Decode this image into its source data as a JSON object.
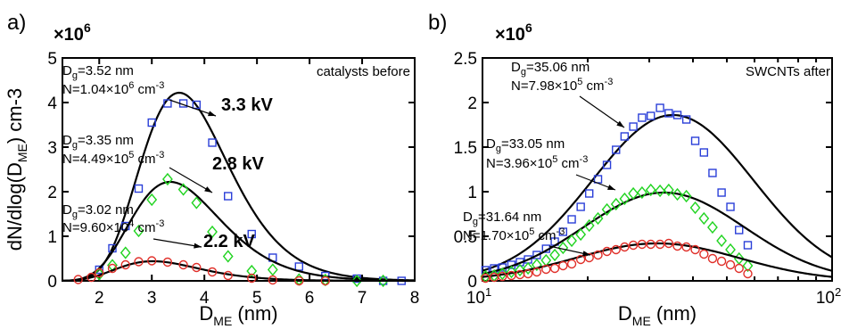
{
  "colors": {
    "fit": "#000000",
    "s33": "#2a3fd8",
    "s28": "#22d422",
    "s22": "#e0302a"
  },
  "chart_data": [
    {
      "type": "scatter",
      "panel_label": "a)",
      "multiplier": "×10",
      "multiplier_exp": "6",
      "xlabel": "D",
      "xlabel_sub": "ME",
      "xlabel_unit": " (nm)",
      "ylabel": "dN/dlog(D",
      "ylabel_sub": "ME",
      "ylabel_unit": ") cm-3",
      "x_scale": "linear",
      "xlim": [
        1.3,
        8
      ],
      "ylim": [
        0,
        5
      ],
      "x_ticks": [
        "2",
        "3",
        "4",
        "5",
        "6",
        "7",
        "8"
      ],
      "y_ticks": [
        "0",
        "1",
        "2",
        "3",
        "4",
        "5"
      ],
      "corner_label": "catalysts before",
      "series": [
        {
          "marker": "square",
          "color_key": "s33",
          "fit_label": "3.3 kV",
          "dg_prefix": "D",
          "dg_sub": "g",
          "dg_value": "=3.52 nm",
          "n_prefix": "N=1.04×10",
          "n_exp": "6",
          "n_unit": " cm",
          "n_unit_exp": "-3",
          "fit": {
            "peak": 4.22,
            "mu": 3.52,
            "sigma": 1.27
          },
          "points": [
            [
              2.0,
              0.25
            ],
            [
              2.25,
              0.73
            ],
            [
              2.5,
              1.23
            ],
            [
              2.75,
              2.07
            ],
            [
              3.0,
              3.55
            ],
            [
              3.3,
              3.98
            ],
            [
              3.6,
              3.98
            ],
            [
              3.85,
              3.95
            ],
            [
              4.15,
              3.1
            ],
            [
              4.45,
              1.9
            ],
            [
              4.9,
              1.05
            ],
            [
              5.3,
              0.52
            ],
            [
              5.8,
              0.32
            ],
            [
              6.3,
              0.11
            ],
            [
              6.9,
              0.05
            ],
            [
              7.4,
              0.0
            ],
            [
              7.75,
              0.0
            ]
          ]
        },
        {
          "marker": "diamond",
          "color_key": "s28",
          "fit_label": "2.8 kV",
          "dg_prefix": "D",
          "dg_sub": "g",
          "dg_value": "=3.35 nm",
          "n_prefix": "N=4.49×10",
          "n_exp": "5",
          "n_unit": " cm",
          "n_unit_exp": "-3",
          "fit": {
            "peak": 2.22,
            "mu": 3.35,
            "sigma": 1.29
          },
          "points": [
            [
              2.0,
              0.15
            ],
            [
              2.25,
              0.35
            ],
            [
              2.5,
              0.63
            ],
            [
              2.75,
              1.12
            ],
            [
              3.0,
              1.82
            ],
            [
              3.3,
              2.28
            ],
            [
              3.6,
              2.05
            ],
            [
              3.85,
              1.75
            ],
            [
              4.15,
              1.1
            ],
            [
              4.45,
              0.55
            ],
            [
              4.9,
              0.22
            ],
            [
              5.3,
              0.25
            ],
            [
              5.8,
              0.03
            ],
            [
              6.3,
              0.02
            ],
            [
              6.9,
              0.0
            ],
            [
              7.4,
              0.0
            ]
          ]
        },
        {
          "marker": "circle",
          "color_key": "s22",
          "fit_label": "2.2 kV",
          "dg_prefix": "D",
          "dg_sub": "g",
          "dg_value": "=3.02 nm",
          "n_prefix": "N=9.60×10",
          "n_exp": "4",
          "n_unit": " cm",
          "n_unit_exp": "-3",
          "fit": {
            "peak": 0.44,
            "mu": 3.02,
            "sigma": 1.3
          },
          "points": [
            [
              1.6,
              0.03
            ],
            [
              1.85,
              0.08
            ],
            [
              2.0,
              0.18
            ],
            [
              2.25,
              0.28
            ],
            [
              2.5,
              0.36
            ],
            [
              2.75,
              0.43
            ],
            [
              3.0,
              0.45
            ],
            [
              3.3,
              0.42
            ],
            [
              3.6,
              0.36
            ],
            [
              3.85,
              0.3
            ],
            [
              4.15,
              0.2
            ],
            [
              4.45,
              0.12
            ],
            [
              4.9,
              0.06
            ],
            [
              5.3,
              0.02
            ],
            [
              5.8,
              0.0
            ],
            [
              6.3,
              0.0
            ]
          ]
        }
      ]
    },
    {
      "type": "scatter",
      "panel_label": "b)",
      "multiplier": "×10",
      "multiplier_exp": "6",
      "xlabel": "D",
      "xlabel_sub": "ME",
      "xlabel_unit": " (nm)",
      "x_scale": "log",
      "xlim": [
        10,
        100
      ],
      "ylim": [
        0,
        2.5
      ],
      "x_ticks": [
        {
          "value": 10,
          "base": "10",
          "exp": "1"
        },
        {
          "value": 100,
          "base": "10",
          "exp": "2"
        }
      ],
      "y_ticks": [
        "0",
        "0.5",
        "1",
        "1.5",
        "2",
        "2.5"
      ],
      "corner_label": "SWCNTs after",
      "series": [
        {
          "marker": "square",
          "color_key": "s33",
          "dg_prefix": "D",
          "dg_sub": "g",
          "dg_value": "=35.06 nm",
          "n_prefix": "N=7.98×10",
          "n_exp": "5",
          "n_unit": " cm",
          "n_unit_exp": "-3",
          "fit": {
            "peak": 1.86,
            "mu": 35.06,
            "sigma": 1.7
          },
          "points": [
            [
              10.2,
              0.12
            ],
            [
              10.8,
              0.14
            ],
            [
              11.4,
              0.15
            ],
            [
              12.1,
              0.18
            ],
            [
              12.8,
              0.21
            ],
            [
              13.5,
              0.24
            ],
            [
              14.3,
              0.29
            ],
            [
              15.2,
              0.36
            ],
            [
              16.1,
              0.44
            ],
            [
              17.0,
              0.55
            ],
            [
              18.0,
              0.69
            ],
            [
              19.1,
              0.83
            ],
            [
              20.2,
              0.98
            ],
            [
              21.4,
              1.14
            ],
            [
              22.7,
              1.3
            ],
            [
              24.1,
              1.47
            ],
            [
              25.5,
              1.62
            ],
            [
              27.0,
              1.73
            ],
            [
              28.6,
              1.83
            ],
            [
              30.3,
              1.85
            ],
            [
              32.2,
              1.94
            ],
            [
              34.1,
              1.88
            ],
            [
              36.1,
              1.86
            ],
            [
              38.3,
              1.81
            ],
            [
              40.6,
              1.57
            ],
            [
              43.0,
              1.44
            ],
            [
              45.5,
              1.21
            ],
            [
              48.3,
              0.99
            ],
            [
              51.2,
              0.83
            ],
            [
              54.2,
              0.57
            ],
            [
              57.4,
              0.4
            ]
          ]
        },
        {
          "marker": "diamond",
          "color_key": "s28",
          "dg_prefix": "D",
          "dg_sub": "g",
          "dg_value": "=33.05 nm",
          "n_prefix": "N=3.96×10",
          "n_exp": "5",
          "n_unit": " cm",
          "n_unit_exp": "-3",
          "fit": {
            "peak": 0.99,
            "mu": 33.05,
            "sigma": 1.7
          },
          "points": [
            [
              10.2,
              0.05
            ],
            [
              10.8,
              0.06
            ],
            [
              11.4,
              0.08
            ],
            [
              12.1,
              0.1
            ],
            [
              12.8,
              0.12
            ],
            [
              13.5,
              0.14
            ],
            [
              14.3,
              0.18
            ],
            [
              15.2,
              0.23
            ],
            [
              16.1,
              0.29
            ],
            [
              17.0,
              0.37
            ],
            [
              18.0,
              0.45
            ],
            [
              19.1,
              0.52
            ],
            [
              20.2,
              0.62
            ],
            [
              21.4,
              0.7
            ],
            [
              22.7,
              0.8
            ],
            [
              24.1,
              0.86
            ],
            [
              25.5,
              0.92
            ],
            [
              27.0,
              0.98
            ],
            [
              28.6,
              0.99
            ],
            [
              30.3,
              1.02
            ],
            [
              32.2,
              1.01
            ],
            [
              34.1,
              1.02
            ],
            [
              36.1,
              0.97
            ],
            [
              38.3,
              0.95
            ],
            [
              40.6,
              0.82
            ],
            [
              43.0,
              0.7
            ],
            [
              45.5,
              0.6
            ],
            [
              48.3,
              0.45
            ],
            [
              51.2,
              0.35
            ],
            [
              54.2,
              0.25
            ],
            [
              57.4,
              0.17
            ]
          ]
        },
        {
          "marker": "circle",
          "color_key": "s22",
          "dg_prefix": "D",
          "dg_sub": "g",
          "dg_value": "=31.64 nm",
          "n_prefix": "N=1.70×10",
          "n_exp": "5",
          "n_unit": " cm",
          "n_unit_exp": "-3",
          "fit": {
            "peak": 0.42,
            "mu": 31.64,
            "sigma": 1.72
          },
          "points": [
            [
              10.2,
              0.03
            ],
            [
              10.8,
              0.04
            ],
            [
              11.4,
              0.05
            ],
            [
              12.1,
              0.06
            ],
            [
              12.8,
              0.07
            ],
            [
              13.5,
              0.08
            ],
            [
              14.3,
              0.1
            ],
            [
              15.2,
              0.13
            ],
            [
              16.1,
              0.14
            ],
            [
              17.0,
              0.17
            ],
            [
              18.0,
              0.19
            ],
            [
              19.1,
              0.24
            ],
            [
              20.2,
              0.26
            ],
            [
              21.4,
              0.29
            ],
            [
              22.7,
              0.33
            ],
            [
              24.1,
              0.35
            ],
            [
              25.5,
              0.38
            ],
            [
              27.0,
              0.4
            ],
            [
              28.6,
              0.41
            ],
            [
              30.3,
              0.41
            ],
            [
              32.2,
              0.41
            ],
            [
              34.1,
              0.42
            ],
            [
              36.1,
              0.39
            ],
            [
              38.3,
              0.38
            ],
            [
              40.6,
              0.35
            ],
            [
              43.0,
              0.3
            ],
            [
              45.5,
              0.25
            ],
            [
              48.3,
              0.22
            ],
            [
              51.2,
              0.18
            ],
            [
              54.2,
              0.14
            ],
            [
              57.4,
              0.08
            ]
          ]
        }
      ]
    }
  ]
}
